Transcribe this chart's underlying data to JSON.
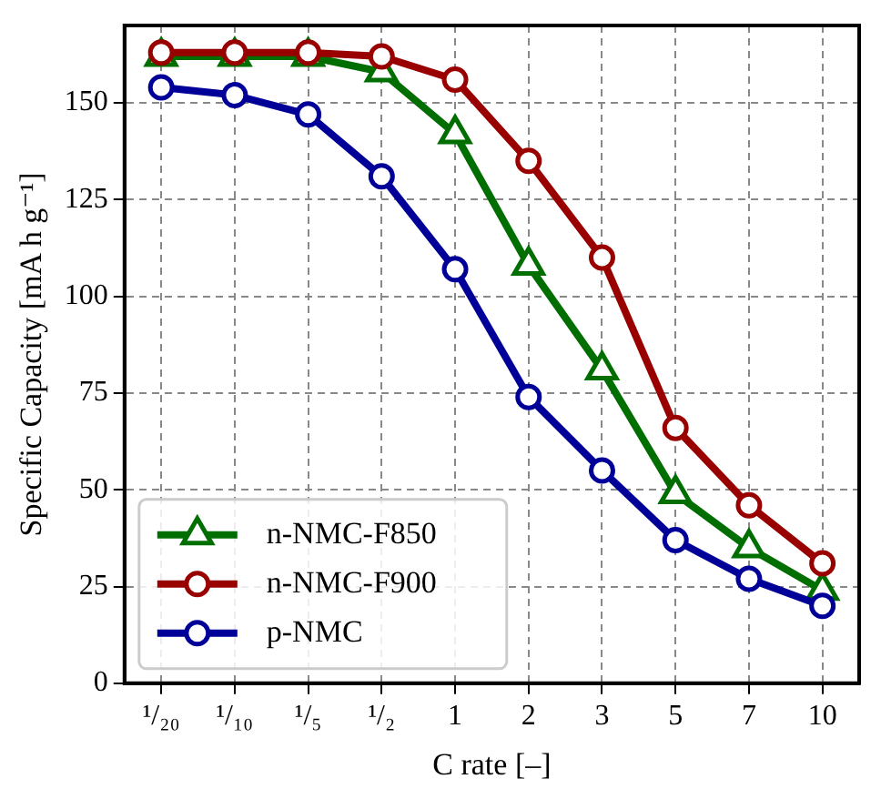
{
  "chart_data": {
    "type": "line",
    "xlabel": "C rate [–]",
    "ylabel": "Specific Capacity [mA h g⁻¹]",
    "categories": [
      "¹/₂₀",
      "¹/₁₀",
      "¹/₅",
      "¹/₂",
      "1",
      "2",
      "3",
      "5",
      "7",
      "10"
    ],
    "series": [
      {
        "name": "n-NMC-F850",
        "color": "#006e00",
        "marker": "triangle",
        "values": [
          162,
          162,
          162,
          158,
          142,
          108,
          81,
          49,
          35,
          24
        ]
      },
      {
        "name": "n-NMC-F900",
        "color": "#990000",
        "marker": "circle",
        "values": [
          163,
          163,
          163,
          162,
          156,
          135,
          110,
          66,
          46,
          31
        ]
      },
      {
        "name": "p-NMC",
        "color": "#000099",
        "marker": "circle",
        "values": [
          154,
          152,
          147,
          131,
          107,
          74,
          55,
          37,
          27,
          20
        ]
      }
    ],
    "ylim": [
      0,
      170
    ],
    "yticks": [
      0,
      25,
      50,
      75,
      100,
      125,
      150
    ],
    "grid": true,
    "legend": "bottom left",
    "line_style": "solid"
  }
}
